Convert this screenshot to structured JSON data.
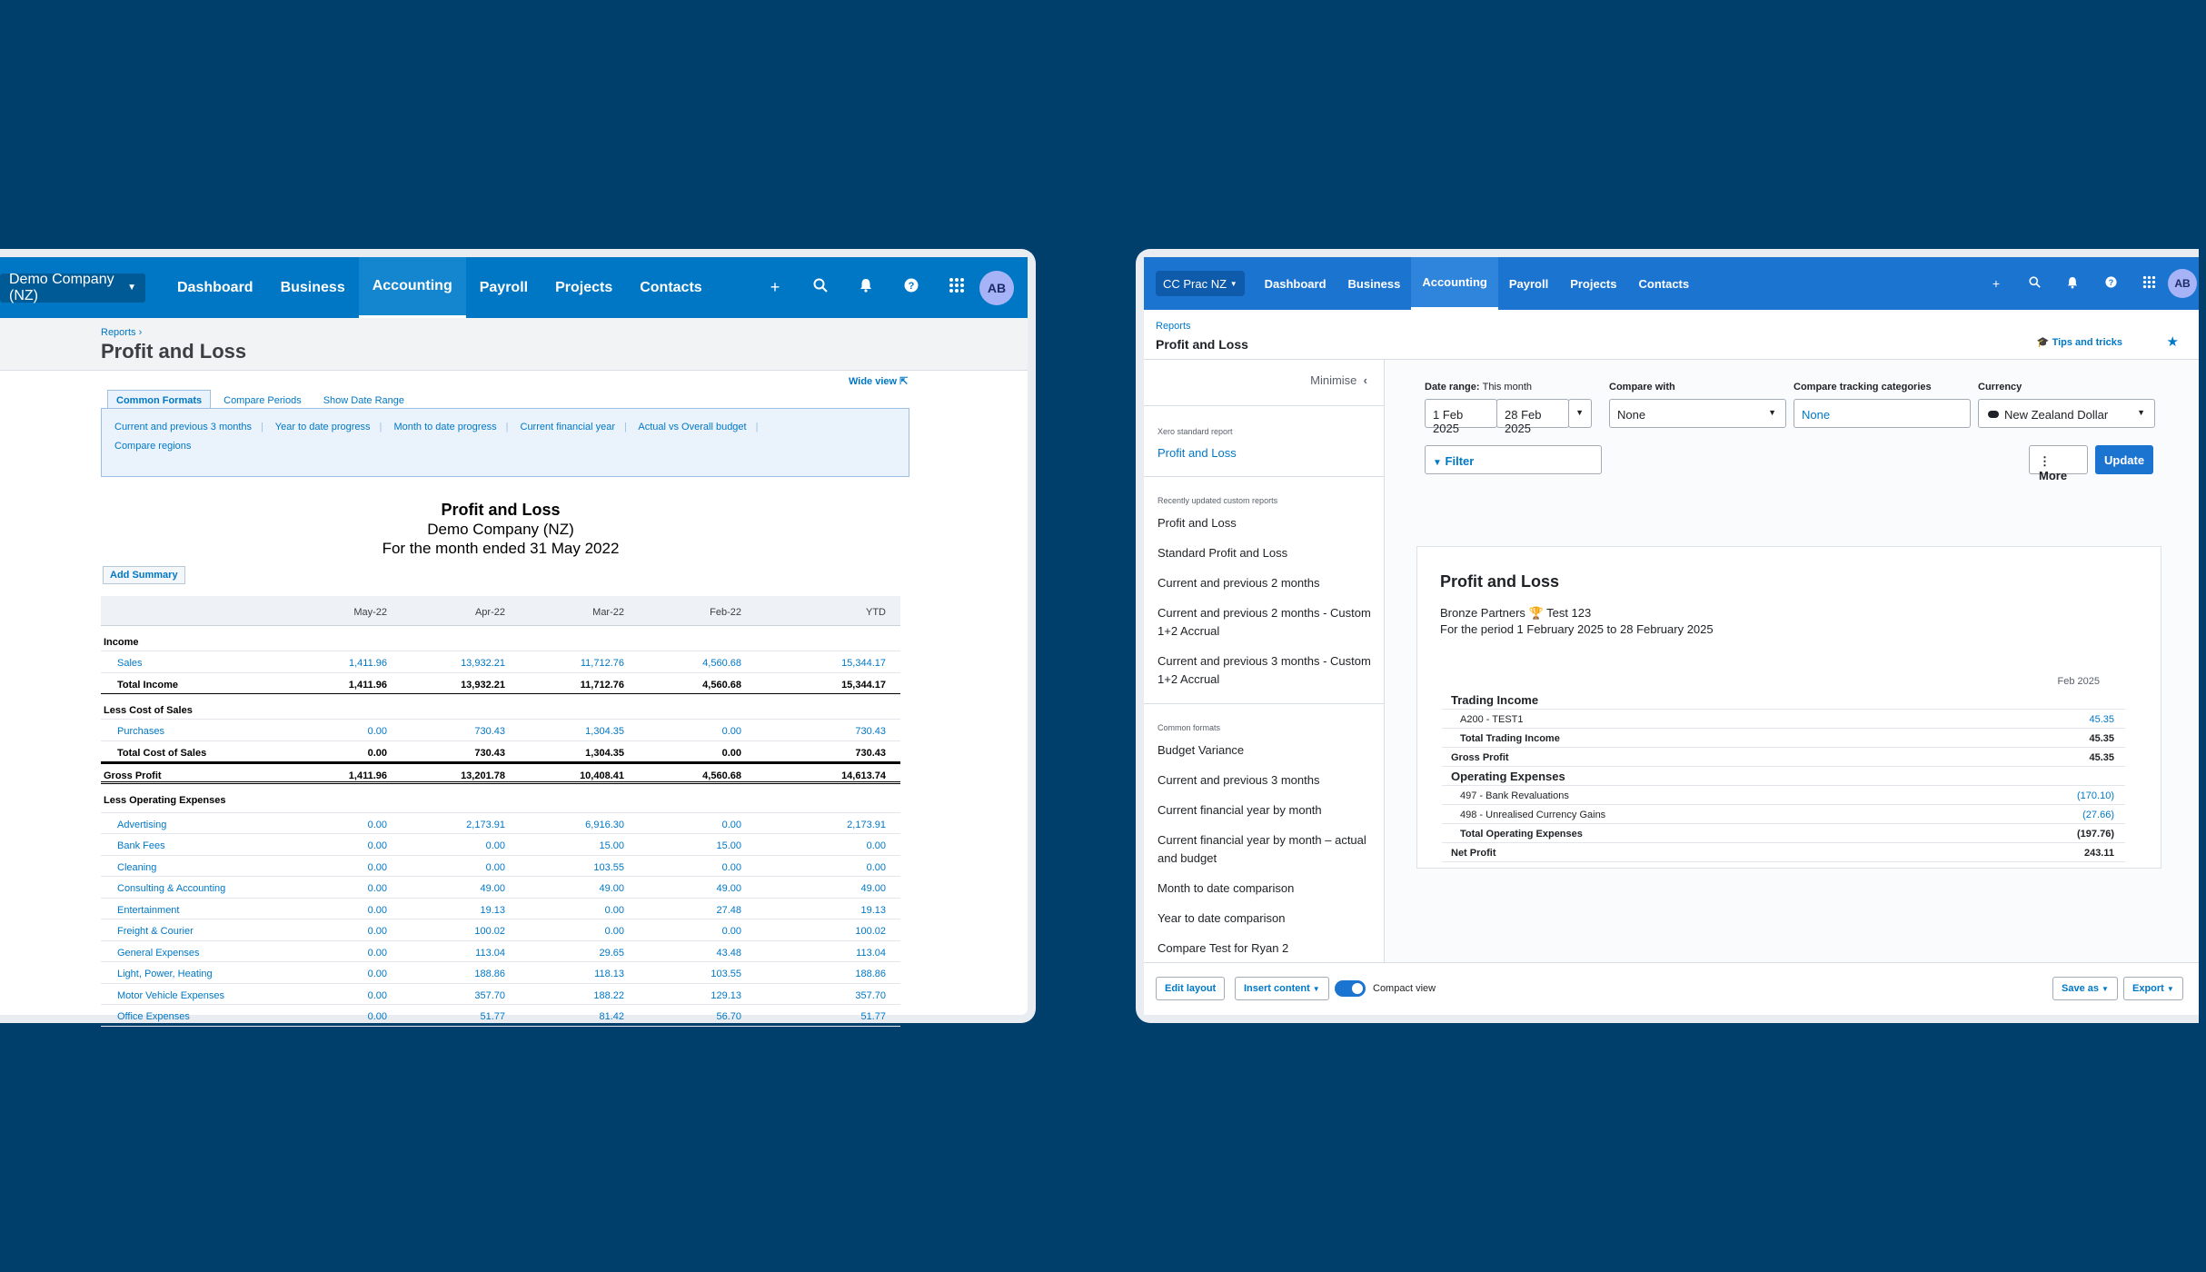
{
  "left": {
    "org": "Demo Company (NZ)",
    "nav": [
      "Dashboard",
      "Business",
      "Accounting",
      "Payroll",
      "Projects",
      "Contacts"
    ],
    "breadcrumb": "Reports",
    "page_title": "Profit and Loss",
    "wide_view": "Wide view",
    "tabs": [
      "Common Formats",
      "Compare Periods",
      "Show Date Range"
    ],
    "format_links": [
      "Current and previous 3 months",
      "Year to date progress",
      "Month to date progress",
      "Current financial year",
      "Actual vs Overall budget",
      "Compare regions"
    ],
    "report_title": "Profit and Loss",
    "report_company": "Demo Company (NZ)",
    "report_period": "For the month ended 31 May 2022",
    "add_summary": "Add Summary",
    "columns": [
      "May-22",
      "Apr-22",
      "Mar-22",
      "Feb-22",
      "YTD"
    ],
    "income_heading": "Income",
    "sales": {
      "label": "Sales",
      "values": [
        "1,411.96",
        "13,932.21",
        "11,712.76",
        "4,560.68",
        "15,344.17"
      ]
    },
    "total_income": {
      "label": "Total Income",
      "values": [
        "1,411.96",
        "13,932.21",
        "11,712.76",
        "4,560.68",
        "15,344.17"
      ]
    },
    "cos_heading": "Less Cost of Sales",
    "purchases": {
      "label": "Purchases",
      "values": [
        "0.00",
        "730.43",
        "1,304.35",
        "0.00",
        "730.43"
      ]
    },
    "total_cos": {
      "label": "Total Cost of Sales",
      "values": [
        "0.00",
        "730.43",
        "1,304.35",
        "0.00",
        "730.43"
      ]
    },
    "gross_profit": {
      "label": "Gross Profit",
      "values": [
        "1,411.96",
        "13,201.78",
        "10,408.41",
        "4,560.68",
        "14,613.74"
      ]
    },
    "opex_heading": "Less Operating Expenses",
    "expenses": [
      {
        "label": "Advertising",
        "values": [
          "0.00",
          "2,173.91",
          "6,916.30",
          "0.00",
          "2,173.91"
        ]
      },
      {
        "label": "Bank Fees",
        "values": [
          "0.00",
          "0.00",
          "15.00",
          "15.00",
          "0.00"
        ]
      },
      {
        "label": "Cleaning",
        "values": [
          "0.00",
          "0.00",
          "103.55",
          "0.00",
          "0.00"
        ]
      },
      {
        "label": "Consulting & Accounting",
        "values": [
          "0.00",
          "49.00",
          "49.00",
          "49.00",
          "49.00"
        ]
      },
      {
        "label": "Entertainment",
        "values": [
          "0.00",
          "19.13",
          "0.00",
          "27.48",
          "19.13"
        ]
      },
      {
        "label": "Freight & Courier",
        "values": [
          "0.00",
          "100.02",
          "0.00",
          "0.00",
          "100.02"
        ]
      },
      {
        "label": "General Expenses",
        "values": [
          "0.00",
          "113.04",
          "29.65",
          "43.48",
          "113.04"
        ]
      },
      {
        "label": "Light, Power, Heating",
        "values": [
          "0.00",
          "188.86",
          "118.13",
          "103.55",
          "188.86"
        ]
      },
      {
        "label": "Motor Vehicle Expenses",
        "values": [
          "0.00",
          "357.70",
          "188.22",
          "129.13",
          "357.70"
        ]
      },
      {
        "label": "Office Expenses",
        "values": [
          "0.00",
          "51.77",
          "81.42",
          "56.70",
          "51.77"
        ]
      }
    ]
  },
  "right": {
    "org": "CC Prac NZ",
    "nav": [
      "Dashboard",
      "Business",
      "Accounting",
      "Payroll",
      "Projects",
      "Contacts"
    ],
    "avatar": "AB",
    "breadcrumb": "Reports",
    "page_title": "Profit and Loss",
    "tips": "Tips and tricks",
    "minimise": "Minimise",
    "sidebar": {
      "standard_heading": "Xero standard report",
      "standard_item": "Profit and Loss",
      "custom_heading": "Recently updated custom reports",
      "custom_items": [
        "Profit and Loss",
        "Standard Profit and Loss",
        "Current and previous 2 months",
        "Current and previous 2 months - Custom 1+2 Accrual",
        "Current and previous 3 months - Custom 1+2 Accrual"
      ],
      "formats_heading": "Common formats",
      "format_items": [
        "Budget Variance",
        "Current and previous 3 months",
        "Current financial year by month",
        "Current financial year by month – actual and budget",
        "Month to date comparison",
        "Year to date comparison",
        "Compare Test for Ryan 2"
      ]
    },
    "filters": {
      "date_range_label": "Date range:",
      "date_range_hint": "This month",
      "date_from": "1 Feb 2025",
      "date_to": "28 Feb 2025",
      "compare_with_label": "Compare with",
      "compare_with_value": "None",
      "tracking_label": "Compare tracking categories",
      "tracking_value": "None",
      "currency_label": "Currency",
      "currency_value": "New Zealand Dollar",
      "filter_btn": "Filter",
      "more_btn": "More",
      "update_btn": "Update"
    },
    "report": {
      "title": "Profit and Loss",
      "org_line": "Bronze Partners 🏆 Test 123",
      "period": "For the period 1 February 2025 to 28 February 2025",
      "column": "Feb 2025",
      "trading_income": "Trading Income",
      "a200": {
        "label": "A200 - TEST1",
        "value": "45.35"
      },
      "total_trading": {
        "label": "Total Trading Income",
        "value": "45.35"
      },
      "gross": {
        "label": "Gross Profit",
        "value": "45.35"
      },
      "opex": "Operating Expenses",
      "r497": {
        "label": "497 - Bank Revaluations",
        "value": "(170.10)"
      },
      "r498": {
        "label": "498 - Unrealised Currency Gains",
        "value": "(27.66)"
      },
      "total_opex": {
        "label": "Total Operating Expenses",
        "value": "(197.76)"
      },
      "net": {
        "label": "Net Profit",
        "value": "243.11"
      }
    },
    "footer": {
      "edit_layout": "Edit layout",
      "insert_content": "Insert content",
      "compact_view": "Compact view",
      "save_as": "Save as",
      "export": "Export"
    }
  },
  "left_avatar": "AB"
}
